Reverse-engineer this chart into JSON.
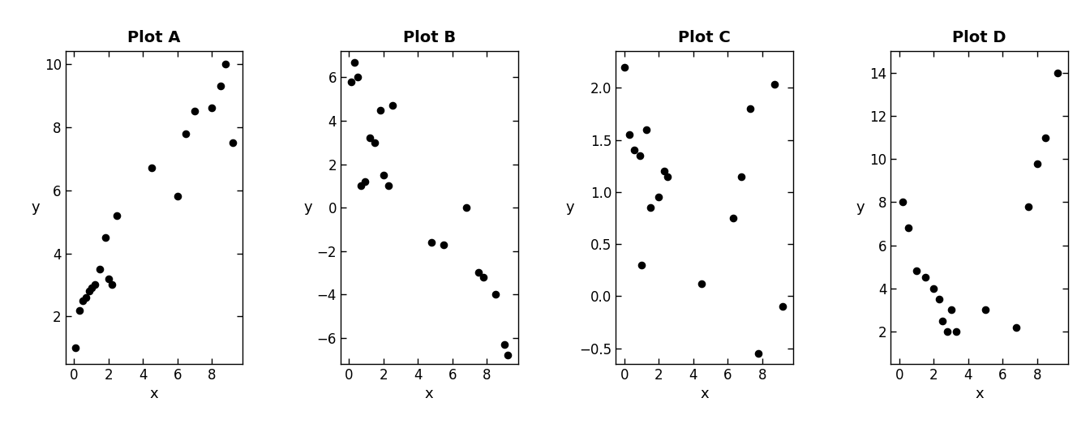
{
  "plots": [
    {
      "title": "Plot A",
      "x": [
        0.1,
        0.3,
        0.5,
        0.7,
        0.9,
        1.0,
        1.2,
        1.5,
        1.8,
        2.0,
        2.2,
        2.5,
        4.5,
        6.0,
        6.5,
        7.0,
        8.0,
        8.5,
        8.8,
        9.2
      ],
      "y": [
        1.0,
        2.2,
        2.5,
        2.6,
        2.8,
        2.9,
        3.0,
        3.5,
        4.5,
        3.2,
        3.0,
        5.2,
        6.7,
        5.8,
        7.8,
        8.5,
        8.6,
        9.3,
        10.0,
        7.5
      ],
      "xlim": [
        -0.5,
        9.8
      ],
      "ylim": [
        0.5,
        10.4
      ],
      "xticks": [
        0,
        2,
        4,
        6,
        8
      ],
      "yticks": [
        2,
        4,
        6,
        8,
        10
      ]
    },
    {
      "title": "Plot B",
      "x": [
        0.1,
        0.3,
        0.5,
        0.7,
        0.9,
        1.2,
        1.5,
        1.8,
        2.0,
        2.3,
        2.5,
        4.8,
        5.5,
        6.8,
        7.5,
        7.8,
        8.5,
        9.0,
        9.2
      ],
      "y": [
        5.8,
        6.7,
        6.0,
        1.0,
        1.2,
        3.2,
        3.0,
        4.5,
        1.5,
        1.0,
        4.7,
        -1.6,
        -1.7,
        0.0,
        -3.0,
        -3.2,
        -4.0,
        -6.3,
        -6.8
      ],
      "xlim": [
        -0.5,
        9.8
      ],
      "ylim": [
        -7.2,
        7.2
      ],
      "xticks": [
        0,
        2,
        4,
        6,
        8
      ],
      "yticks": [
        -6,
        -4,
        -2,
        0,
        2,
        4,
        6
      ]
    },
    {
      "title": "Plot C",
      "x": [
        0.0,
        0.3,
        0.6,
        0.9,
        1.0,
        1.3,
        1.5,
        2.0,
        2.3,
        2.5,
        4.5,
        6.3,
        6.8,
        7.3,
        7.8,
        8.7,
        9.2
      ],
      "y": [
        2.2,
        1.55,
        1.4,
        1.35,
        0.3,
        1.6,
        0.85,
        0.95,
        1.2,
        1.15,
        0.12,
        0.75,
        1.15,
        1.8,
        -0.55,
        2.03,
        -0.1
      ],
      "xlim": [
        -0.5,
        9.8
      ],
      "ylim": [
        -0.65,
        2.35
      ],
      "xticks": [
        0,
        2,
        4,
        6,
        8
      ],
      "yticks": [
        -0.5,
        0.0,
        0.5,
        1.0,
        1.5,
        2.0
      ]
    },
    {
      "title": "Plot D",
      "x": [
        0.2,
        0.5,
        1.0,
        1.5,
        2.0,
        2.3,
        2.5,
        2.8,
        3.0,
        3.3,
        5.0,
        6.8,
        7.5,
        8.0,
        8.5,
        9.2
      ],
      "y": [
        8.0,
        6.8,
        4.8,
        4.5,
        4.0,
        3.5,
        2.5,
        2.0,
        3.0,
        2.0,
        3.0,
        2.2,
        7.8,
        9.8,
        11.0,
        14.0
      ],
      "xlim": [
        -0.5,
        9.8
      ],
      "ylim": [
        0.5,
        15.0
      ],
      "xticks": [
        0,
        2,
        4,
        6,
        8
      ],
      "yticks": [
        2,
        4,
        6,
        8,
        10,
        12,
        14
      ]
    }
  ],
  "marker_color": "black",
  "marker_size": 35,
  "xlabel": "x",
  "ylabel": "y",
  "title_fontsize": 14,
  "label_fontsize": 13,
  "tick_fontsize": 12,
  "title_fontweight": "bold"
}
